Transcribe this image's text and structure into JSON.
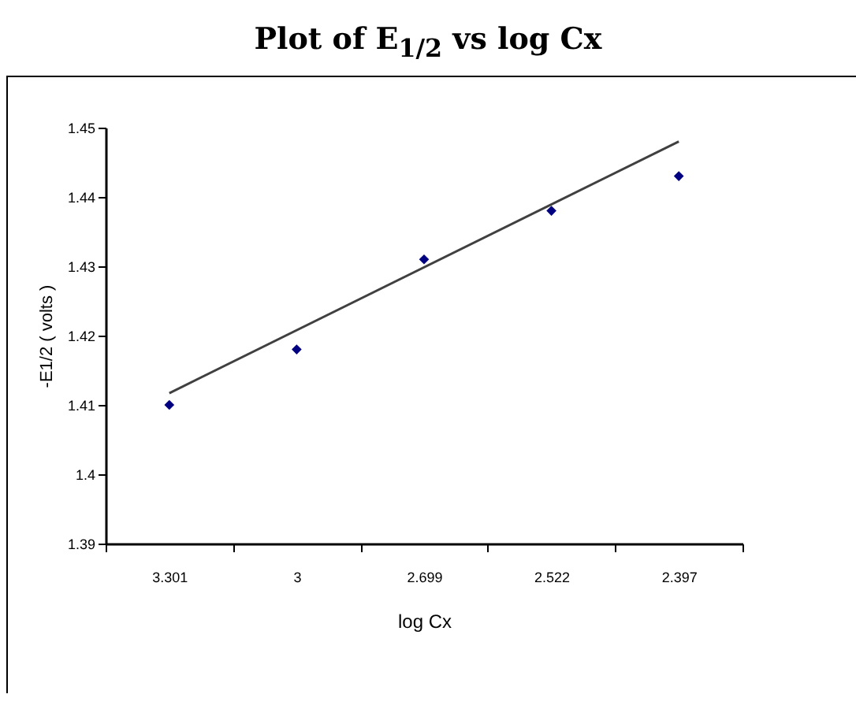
{
  "chart_data": {
    "type": "scatter",
    "title": "Plot of E$_{1/2}$ vs log Cx",
    "xlabel": "log Cx",
    "ylabel": "-E1/2 ( volts )",
    "categories": [
      "3.301",
      "3",
      "2.699",
      "2.522",
      "2.397"
    ],
    "ylim": [
      1.39,
      1.45
    ],
    "yticks": [
      1.39,
      1.4,
      1.41,
      1.42,
      1.43,
      1.44,
      1.45
    ],
    "grid": false,
    "marker": "diamond",
    "series": [
      {
        "color": "#000080",
        "values": [
          1.41,
          1.418,
          1.431,
          1.438,
          1.443
        ]
      },
      {
        "type": "line",
        "color": "#404040",
        "x": [
          "3.301",
          "2.397"
        ],
        "values": [
          1.4117,
          1.448
        ],
        "line_style": "solid",
        "marker": "none"
      }
    ]
  }
}
